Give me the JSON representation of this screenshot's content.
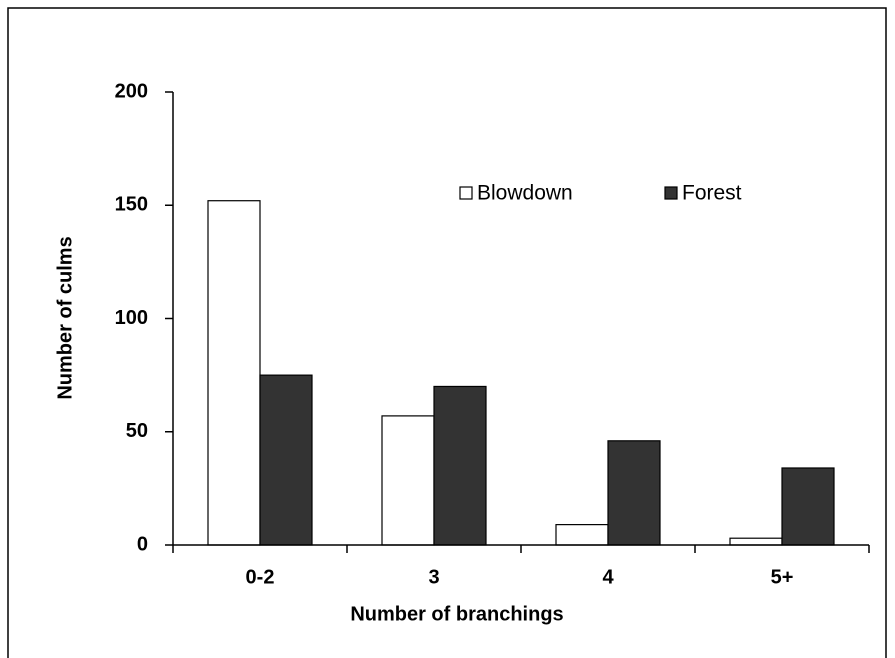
{
  "chart_data": {
    "type": "bar",
    "x_label": "Number of branchings",
    "y_label": "Number of culms",
    "categories": [
      "0-2",
      "3",
      "4",
      "5+"
    ],
    "series": [
      {
        "name": "Blowdown",
        "color": "#ffffff",
        "values": [
          152,
          57,
          9,
          3
        ]
      },
      {
        "name": "Forest",
        "color": "#333333",
        "values": [
          75,
          70,
          46,
          34
        ]
      }
    ],
    "ylim": [
      0,
      200
    ],
    "yticks": [
      0,
      50,
      100,
      150,
      200
    ],
    "grid": false
  }
}
